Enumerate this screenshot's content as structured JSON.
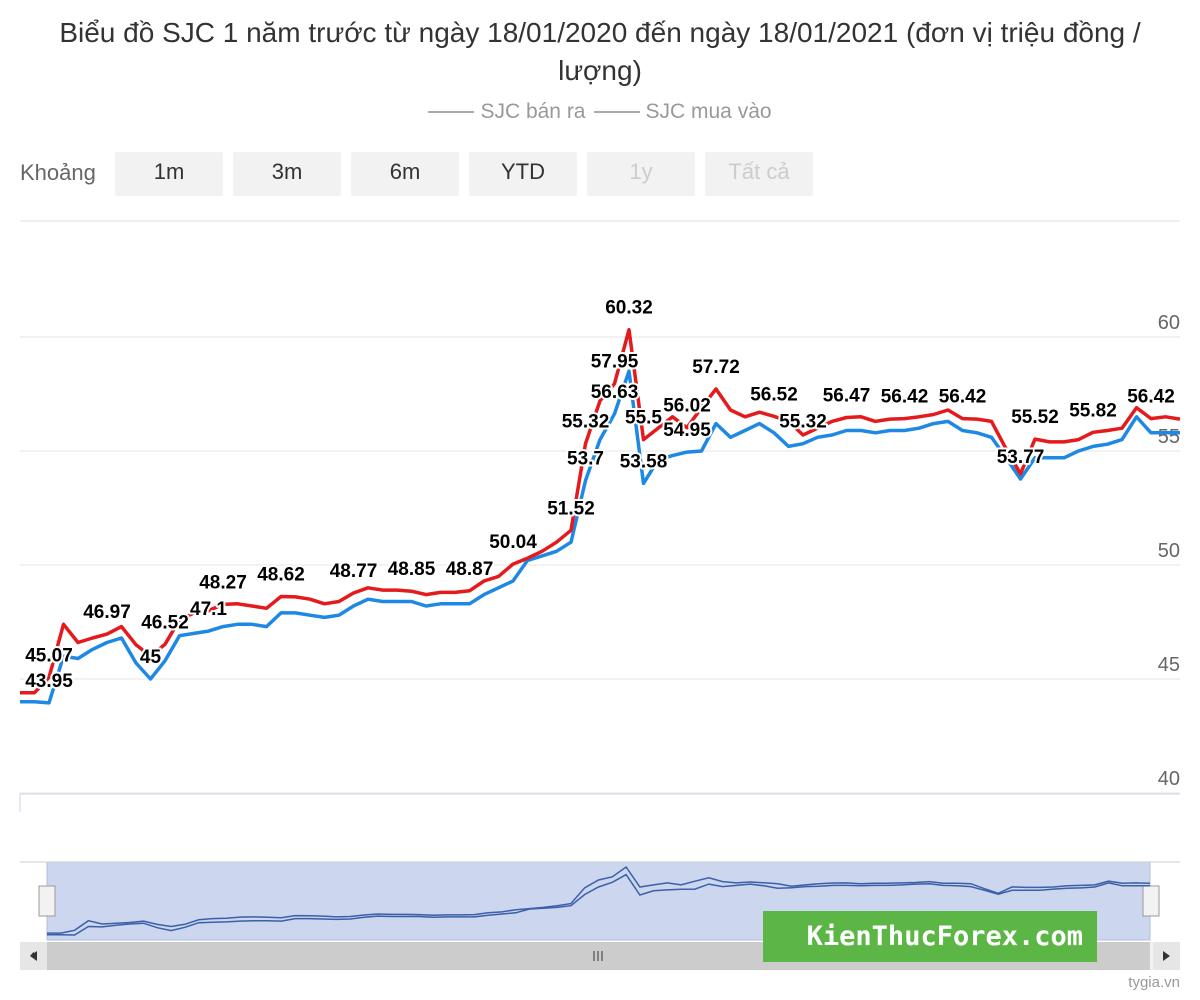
{
  "chart_data": {
    "type": "line",
    "title": "Biểu đồ SJC 1 năm trước từ ngày 18/01/2020 đến ngày 18/01/2021 (đơn vị triệu đồng / lượng)",
    "range_label": "Khoảng",
    "buttons": [
      {
        "label": "1m"
      },
      {
        "label": "3m"
      },
      {
        "label": "6m"
      },
      {
        "label": "YTD"
      },
      {
        "label": "1y",
        "disabled": true
      },
      {
        "label": "Tất cả",
        "disabled": true
      }
    ],
    "ylim": [
      40,
      65
    ],
    "yticks": [
      40,
      45,
      50,
      55,
      60
    ],
    "grid": true,
    "series": [
      {
        "name": "SJC bán ra",
        "color": "#e41a1c",
        "values": [
          44.4,
          44.4,
          45.07,
          47.4,
          46.6,
          46.8,
          46.97,
          47.3,
          46.5,
          46.0,
          46.52,
          47.6,
          47.9,
          48.0,
          48.27,
          48.3,
          48.2,
          48.1,
          48.62,
          48.6,
          48.5,
          48.3,
          48.4,
          48.77,
          49.0,
          48.9,
          48.9,
          48.85,
          48.7,
          48.8,
          48.8,
          48.87,
          49.3,
          49.5,
          50.04,
          50.3,
          50.6,
          51.0,
          51.52,
          55.32,
          57.2,
          57.95,
          60.32,
          55.5,
          56.0,
          56.5,
          56.02,
          56.9,
          57.72,
          56.8,
          56.5,
          56.7,
          56.52,
          56.3,
          55.7,
          56.0,
          56.3,
          56.47,
          56.5,
          56.3,
          56.4,
          56.42,
          56.5,
          56.6,
          56.8,
          56.42,
          56.4,
          56.3,
          55.1,
          54.0,
          55.52,
          55.4,
          55.4,
          55.5,
          55.82,
          55.9,
          56.0,
          56.9,
          56.42,
          56.5,
          56.4
        ],
        "value_labels": [
          null,
          null,
          "45.07",
          null,
          null,
          null,
          "46.97",
          null,
          null,
          null,
          "46.52",
          null,
          null,
          null,
          "48.27",
          null,
          null,
          null,
          "48.62",
          null,
          null,
          null,
          null,
          "48.77",
          null,
          null,
          null,
          "48.85",
          null,
          null,
          null,
          "48.87",
          null,
          null,
          "50.04",
          null,
          null,
          null,
          "51.52",
          "55.32",
          null,
          "57.95",
          "60.32",
          "55.5",
          null,
          null,
          "56.02",
          null,
          "57.72",
          null,
          null,
          null,
          "56.52",
          null,
          null,
          null,
          null,
          "56.47",
          null,
          null,
          null,
          "56.42",
          null,
          null,
          null,
          "56.42",
          null,
          null,
          null,
          null,
          "55.52",
          null,
          null,
          null,
          "55.82",
          null,
          null,
          null,
          "56.42",
          null,
          null
        ]
      },
      {
        "name": "SJC mua vào",
        "color": "#1e88e5",
        "values": [
          44.0,
          44.0,
          43.95,
          46.0,
          45.9,
          46.3,
          46.6,
          46.8,
          45.7,
          45,
          45.8,
          46.9,
          47.0,
          47.1,
          47.3,
          47.4,
          47.4,
          47.3,
          47.9,
          47.9,
          47.8,
          47.7,
          47.8,
          48.2,
          48.5,
          48.4,
          48.4,
          48.4,
          48.2,
          48.3,
          48.3,
          48.3,
          48.7,
          49.0,
          49.3,
          50.2,
          50.4,
          50.6,
          51.0,
          53.7,
          55.5,
          56.63,
          58.5,
          53.58,
          54.6,
          54.8,
          54.95,
          55.0,
          56.2,
          55.6,
          55.9,
          56.2,
          55.8,
          55.2,
          55.32,
          55.6,
          55.7,
          55.9,
          55.9,
          55.8,
          55.9,
          55.9,
          56.0,
          56.2,
          56.3,
          55.9,
          55.8,
          55.6,
          54.7,
          53.77,
          54.7,
          54.7,
          54.7,
          55.0,
          55.2,
          55.3,
          55.5,
          56.5,
          55.8,
          55.8,
          55.8
        ],
        "value_labels": [
          null,
          null,
          "43.95",
          null,
          null,
          null,
          null,
          null,
          null,
          "45",
          null,
          null,
          null,
          "47.1",
          null,
          null,
          null,
          null,
          null,
          null,
          null,
          null,
          null,
          null,
          null,
          null,
          null,
          null,
          null,
          null,
          null,
          null,
          null,
          null,
          null,
          null,
          null,
          null,
          null,
          "53.7",
          null,
          "56.63",
          null,
          "53.58",
          null,
          null,
          "54.95",
          null,
          null,
          null,
          null,
          null,
          null,
          null,
          "55.32",
          null,
          null,
          null,
          null,
          null,
          null,
          null,
          null,
          null,
          null,
          null,
          null,
          null,
          null,
          "53.77",
          null,
          null,
          null,
          null,
          null,
          null,
          null,
          null,
          null,
          null,
          null
        ]
      }
    ],
    "watermark": "KienThucForex.com",
    "credit": "tygia.vn"
  }
}
